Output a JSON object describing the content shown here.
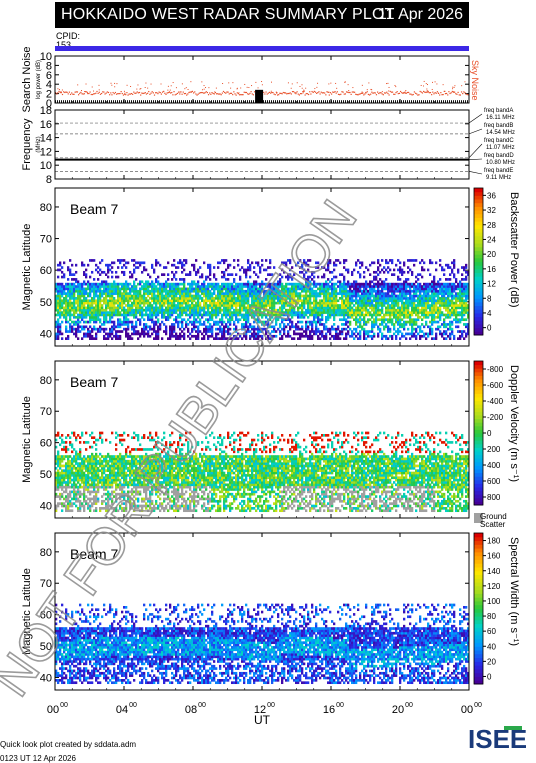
{
  "title": "HOKKAIDO WEST RADAR SUMMARY PLOT",
  "date": "11 Apr 2026",
  "cpid_label": "CPID:",
  "cpid_value": "153",
  "footer": {
    "line1": "Quick look plot created by sddata.adm",
    "line2": "0123 UT 12 Apr 2026"
  },
  "watermark": "NOT FOR PUBLICATION",
  "logo_text": "ISEE",
  "colors": {
    "cpid_bar": "#3c28e6",
    "noise_points": "#e8502a",
    "ground_scatter": "#a0a0a0",
    "band_dashed": "#666666"
  },
  "chart_data": [
    {
      "type": "scatter",
      "name": "search-noise-panel",
      "ylabel": "Search Noise",
      "ylabel_sub": "log power (dB)",
      "legend": "Sky Noise",
      "ylim": [
        0,
        10
      ],
      "yticks": [
        "0",
        "2",
        "4",
        "6",
        "8",
        "10"
      ],
      "sky_noise_level": 2.2,
      "xlim": [
        0,
        24
      ]
    },
    {
      "type": "line",
      "name": "frequency-panel",
      "ylabel": "Frequency",
      "yunit": "(MHz)",
      "ylim": [
        8,
        18
      ],
      "yticks": [
        "8",
        "10",
        "12",
        "14",
        "16",
        "18"
      ],
      "operating_frequency": 10.8,
      "bands": [
        {
          "label": "freq bandA",
          "value_label": "16.11 MHz",
          "mhz": 16.11
        },
        {
          "label": "freq bandB",
          "value_label": "14.54 MHz",
          "mhz": 14.54
        },
        {
          "label": "freq bandC",
          "value_label": "11.07 MHz",
          "mhz": 11.07
        },
        {
          "label": "freq bandD",
          "value_label": "10.80 MHz",
          "mhz": 10.8
        },
        {
          "label": "freq bandE",
          "value_label": "9.11 MHz",
          "mhz": 9.11
        }
      ]
    },
    {
      "type": "heatmap",
      "name": "power-panel",
      "beam": "Beam  7",
      "ylabel": "Magnetic Latitude",
      "ylim": [
        36,
        86
      ],
      "yticks": [
        "40",
        "50",
        "60",
        "70",
        "80"
      ],
      "colorbar_label": "Backscatter Power (dB)",
      "colorbar_ticks": [
        "0",
        "4",
        "8",
        "12",
        "16",
        "20",
        "24",
        "28",
        "32",
        "36"
      ],
      "colorbar_range": [
        0,
        38
      ]
    },
    {
      "type": "heatmap",
      "name": "velocity-panel",
      "beam": "Beam  7",
      "ylabel": "Magnetic Latitude",
      "ylim": [
        36,
        86
      ],
      "yticks": [
        "40",
        "50",
        "60",
        "70",
        "80"
      ],
      "colorbar_label": "Doppler Velocity (m s⁻¹)",
      "colorbar_ticks": [
        "800",
        "600",
        "400",
        "200",
        "0",
        "-200",
        "-400",
        "-600",
        "-800"
      ],
      "colorbar_range": [
        -1000,
        1000
      ],
      "ground_label": "Ground",
      "scatter_label": "Scatter"
    },
    {
      "type": "heatmap",
      "name": "width-panel",
      "beam": "Beam  7",
      "ylabel": "Magnetic Latitude",
      "ylim": [
        36,
        86
      ],
      "yticks": [
        "40",
        "50",
        "60",
        "70",
        "80"
      ],
      "colorbar_label": "Spectral Width (m s⁻¹)",
      "colorbar_ticks": [
        "0",
        "20",
        "40",
        "60",
        "80",
        "100",
        "120",
        "140",
        "160",
        "180"
      ],
      "colorbar_range": [
        0,
        190
      ]
    }
  ],
  "x_axis": {
    "label": "UT",
    "range": [
      0,
      24
    ],
    "ticks": [
      {
        "h": 0,
        "label": "00",
        "sup": "00"
      },
      {
        "h": 4,
        "label": "04",
        "sup": "00"
      },
      {
        "h": 8,
        "label": "08",
        "sup": "00"
      },
      {
        "h": 12,
        "label": "12",
        "sup": "00"
      },
      {
        "h": 16,
        "label": "16",
        "sup": "00"
      },
      {
        "h": 20,
        "label": "20",
        "sup": "00"
      },
      {
        "h": 24,
        "label": "00",
        "sup": "00"
      }
    ]
  }
}
